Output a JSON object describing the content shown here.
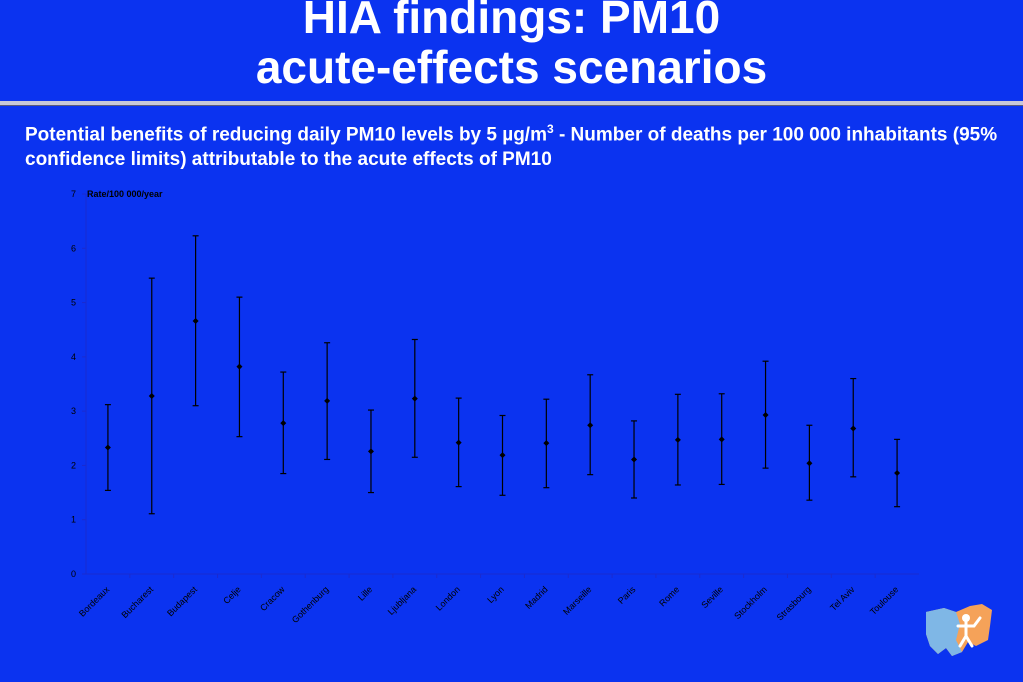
{
  "title": {
    "line1": "HIA findings: PM10",
    "line2": "acute-effects scenarios"
  },
  "subtitle": {
    "part1": "Potential benefits of reducing daily PM10 levels by 5 µg/m",
    "sup": "3",
    "part2": " - Number of deaths per 100 000 inhabitants (95% confidence limits) attributable to the acute effects of PM10"
  },
  "colors": {
    "background": "#0b33f0",
    "text": "#ffffff",
    "marks": "#000000"
  },
  "chart_data": {
    "type": "scatter",
    "ylabel": "Rate/100 000/year",
    "ylim": [
      0,
      7
    ],
    "yticks": [
      0,
      1,
      2,
      3,
      4,
      5,
      6,
      7
    ],
    "grid": false,
    "categories": [
      "Bordeaux",
      "Bucharest",
      "Budapest",
      "Celje",
      "Cracow",
      "Gothenburg",
      "Lille",
      "Ljubljana",
      "London",
      "Lyon",
      "Madrid",
      "Marseille",
      "Paris",
      "Rome",
      "Seville",
      "Stockholm",
      "Strasbourg",
      "Tel Aviv",
      "Toulouse"
    ],
    "values": [
      2.33,
      3.28,
      4.66,
      3.82,
      2.78,
      3.19,
      2.26,
      3.23,
      2.42,
      2.19,
      2.41,
      2.74,
      2.11,
      2.47,
      2.48,
      2.93,
      2.04,
      2.68,
      1.86
    ],
    "lower": [
      1.54,
      1.11,
      3.1,
      2.53,
      1.85,
      2.11,
      1.5,
      2.15,
      1.61,
      1.45,
      1.59,
      1.83,
      1.4,
      1.64,
      1.65,
      1.95,
      1.36,
      1.79,
      1.24
    ],
    "upper": [
      3.12,
      5.45,
      6.23,
      5.1,
      3.72,
      4.26,
      3.02,
      4.32,
      3.24,
      2.92,
      3.22,
      3.67,
      2.82,
      3.31,
      3.32,
      3.92,
      2.74,
      3.6,
      2.48
    ]
  },
  "logo": {
    "icon": "who-europe-map-logo"
  }
}
